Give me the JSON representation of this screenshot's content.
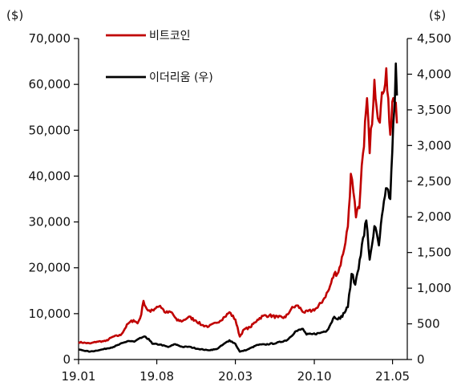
{
  "chart_data": {
    "type": "line",
    "y_left_unit": "($)",
    "y_right_unit": "($)",
    "x_tick_labels": [
      "19.01",
      "19.08",
      "20.03",
      "20.10",
      "21.05"
    ],
    "x_tick_positions": [
      "2019-01",
      "2019-08",
      "2020-03",
      "2020-10",
      "2021-05"
    ],
    "x_range": [
      "2019-01-01",
      "2021-06-10"
    ],
    "y_left_range": [
      0,
      70000
    ],
    "y_left_ticks": [
      "0",
      "10,000",
      "20,000",
      "30,000",
      "40,000",
      "50,000",
      "60,000",
      "70,000"
    ],
    "y_left_tick_values": [
      0,
      10000,
      20000,
      30000,
      40000,
      50000,
      60000,
      70000
    ],
    "y_right_range": [
      0,
      4500
    ],
    "y_right_ticks": [
      "0",
      "500",
      "1,000",
      "1,500",
      "2,000",
      "2,500",
      "3,000",
      "3,500",
      "4,000",
      "4,500"
    ],
    "y_right_tick_values": [
      0,
      500,
      1000,
      1500,
      2000,
      2500,
      3000,
      3500,
      4000,
      4500
    ],
    "grid": false,
    "legend_position": "top-left",
    "series": [
      {
        "name": "비트코인",
        "axis": "left",
        "color": "#c00000",
        "points": [
          [
            "2019-01-01",
            3800
          ],
          [
            "2019-02-01",
            3500
          ],
          [
            "2019-02-20",
            3900
          ],
          [
            "2019-03-15",
            4000
          ],
          [
            "2019-04-05",
            5000
          ],
          [
            "2019-04-25",
            5300
          ],
          [
            "2019-05-15",
            7800
          ],
          [
            "2019-05-30",
            8600
          ],
          [
            "2019-06-10",
            7900
          ],
          [
            "2019-06-20",
            9800
          ],
          [
            "2019-06-26",
            12800
          ],
          [
            "2019-07-05",
            11000
          ],
          [
            "2019-07-15",
            10400
          ],
          [
            "2019-08-01",
            11500
          ],
          [
            "2019-08-10",
            11700
          ],
          [
            "2019-08-25",
            10200
          ],
          [
            "2019-09-10",
            10300
          ],
          [
            "2019-09-25",
            8500
          ],
          [
            "2019-10-10",
            8400
          ],
          [
            "2019-10-26",
            9300
          ],
          [
            "2019-11-15",
            8500
          ],
          [
            "2019-12-01",
            7500
          ],
          [
            "2019-12-20",
            7200
          ],
          [
            "2020-01-10",
            8000
          ],
          [
            "2020-02-01",
            9300
          ],
          [
            "2020-02-14",
            10300
          ],
          [
            "2020-03-01",
            8700
          ],
          [
            "2020-03-13",
            5000
          ],
          [
            "2020-03-25",
            6600
          ],
          [
            "2020-04-10",
            7000
          ],
          [
            "2020-04-30",
            8700
          ],
          [
            "2020-05-15",
            9500
          ],
          [
            "2020-06-01",
            9600
          ],
          [
            "2020-06-25",
            9200
          ],
          [
            "2020-07-15",
            9200
          ],
          [
            "2020-07-30",
            11000
          ],
          [
            "2020-08-15",
            11800
          ],
          [
            "2020-09-05",
            10200
          ],
          [
            "2020-09-25",
            10700
          ],
          [
            "2020-10-10",
            11300
          ],
          [
            "2020-10-25",
            13000
          ],
          [
            "2020-11-10",
            15300
          ],
          [
            "2020-11-24",
            18700
          ],
          [
            "2020-12-05",
            19000
          ],
          [
            "2020-12-18",
            23000
          ],
          [
            "2020-12-31",
            29000
          ],
          [
            "2021-01-08",
            40500
          ],
          [
            "2021-01-15",
            36500
          ],
          [
            "2021-01-22",
            31000
          ],
          [
            "2021-01-31",
            33000
          ],
          [
            "2021-02-10",
            45000
          ],
          [
            "2021-02-21",
            57000
          ],
          [
            "2021-02-28",
            45000
          ],
          [
            "2021-03-13",
            61000
          ],
          [
            "2021-03-25",
            52000
          ],
          [
            "2021-04-05",
            58000
          ],
          [
            "2021-04-14",
            63500
          ],
          [
            "2021-04-25",
            49000
          ],
          [
            "2021-05-03",
            57000
          ],
          [
            "2021-05-10",
            56000
          ],
          [
            "2021-05-13",
            51500
          ]
        ]
      },
      {
        "name": "이더리움 (우)",
        "axis": "right",
        "color": "#000000",
        "points": [
          [
            "2019-01-01",
            140
          ],
          [
            "2019-02-01",
            110
          ],
          [
            "2019-03-01",
            135
          ],
          [
            "2019-04-05",
            175
          ],
          [
            "2019-05-15",
            260
          ],
          [
            "2019-06-01",
            250
          ],
          [
            "2019-06-26",
            320
          ],
          [
            "2019-07-10",
            290
          ],
          [
            "2019-07-20",
            220
          ],
          [
            "2019-08-10",
            210
          ],
          [
            "2019-09-01",
            175
          ],
          [
            "2019-09-20",
            215
          ],
          [
            "2019-10-10",
            175
          ],
          [
            "2019-10-26",
            180
          ],
          [
            "2019-11-20",
            150
          ],
          [
            "2019-12-18",
            130
          ],
          [
            "2020-01-10",
            145
          ],
          [
            "2020-02-14",
            270
          ],
          [
            "2020-03-01",
            220
          ],
          [
            "2020-03-13",
            110
          ],
          [
            "2020-04-01",
            135
          ],
          [
            "2020-04-30",
            205
          ],
          [
            "2020-05-20",
            210
          ],
          [
            "2020-06-20",
            230
          ],
          [
            "2020-07-20",
            275
          ],
          [
            "2020-08-10",
            390
          ],
          [
            "2020-08-31",
            430
          ],
          [
            "2020-09-10",
            350
          ],
          [
            "2020-09-25",
            355
          ],
          [
            "2020-10-15",
            370
          ],
          [
            "2020-11-05",
            410
          ],
          [
            "2020-11-24",
            600
          ],
          [
            "2020-12-10",
            570
          ],
          [
            "2020-12-31",
            735
          ],
          [
            "2021-01-10",
            1200
          ],
          [
            "2021-01-20",
            1050
          ],
          [
            "2021-02-01",
            1400
          ],
          [
            "2021-02-19",
            1950
          ],
          [
            "2021-02-28",
            1400
          ],
          [
            "2021-03-13",
            1870
          ],
          [
            "2021-03-25",
            1600
          ],
          [
            "2021-04-05",
            2100
          ],
          [
            "2021-04-16",
            2400
          ],
          [
            "2021-04-25",
            2250
          ],
          [
            "2021-05-03",
            3300
          ],
          [
            "2021-05-07",
            3600
          ],
          [
            "2021-05-10",
            4150
          ],
          [
            "2021-05-13",
            3700
          ]
        ]
      }
    ]
  }
}
